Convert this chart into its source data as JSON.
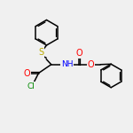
{
  "bg_color": "#f0f0f0",
  "line_color": "#000000",
  "bond_width": 1.1,
  "atom_colors": {
    "O": "#ff0000",
    "N": "#0000ff",
    "Cl": "#008800",
    "S": "#bbaa00",
    "C": "#000000",
    "H": "#000000"
  },
  "font_size": 6.5,
  "title": ""
}
